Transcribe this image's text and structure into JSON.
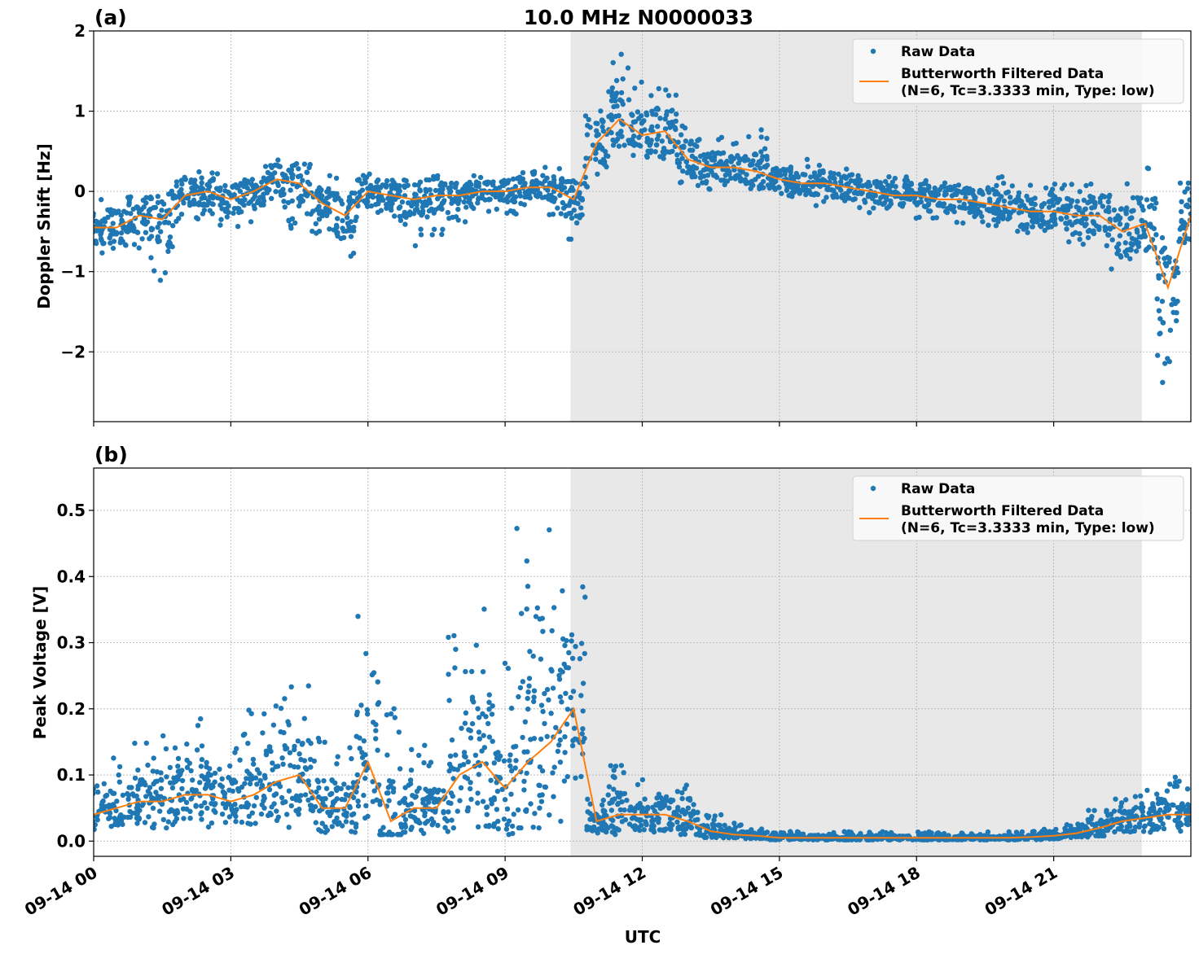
{
  "chart_data": [
    {
      "type": "scatter",
      "panel_label": "(a)",
      "title": "10.0 MHz N0000033",
      "xlabel": "",
      "ylabel": "Doppler Shift [Hz]",
      "xlim_hours_utc": [
        0,
        24
      ],
      "ylim": [
        -2.87,
        2.0
      ],
      "yticks": [
        2,
        1,
        0,
        -1,
        -2
      ],
      "ytick_labels": [
        "2",
        "1",
        "0",
        "−1",
        "−2"
      ],
      "grid": true,
      "legend_position": "top-right",
      "shaded_span_hours_utc": [
        10.43,
        22.93
      ],
      "x_hours_utc": [
        0,
        0.5,
        1,
        1.5,
        2,
        2.5,
        3,
        3.5,
        4,
        4.5,
        5,
        5.5,
        6,
        6.5,
        7,
        7.5,
        8,
        8.5,
        9,
        9.5,
        10,
        10.5,
        11,
        11.5,
        12,
        12.5,
        13,
        13.5,
        14,
        14.5,
        15,
        15.5,
        16,
        16.5,
        17,
        17.5,
        18,
        18.5,
        19,
        19.5,
        20,
        20.5,
        21,
        21.5,
        22,
        22.5,
        23,
        23.5,
        24
      ],
      "series": [
        {
          "name": "Butterworth Filtered Data\n(N=6, Tc=3.3333 min, Type: low)",
          "kind": "line",
          "values": [
            -0.45,
            -0.45,
            -0.3,
            -0.35,
            -0.05,
            0.0,
            -0.1,
            0.0,
            0.15,
            0.1,
            -0.15,
            -0.3,
            0.0,
            -0.05,
            -0.1,
            -0.05,
            -0.05,
            0.0,
            0.0,
            0.05,
            0.05,
            -0.1,
            0.6,
            0.9,
            0.7,
            0.75,
            0.4,
            0.3,
            0.3,
            0.25,
            0.15,
            0.1,
            0.1,
            0.05,
            0.0,
            -0.05,
            -0.05,
            -0.1,
            -0.1,
            -0.15,
            -0.2,
            -0.25,
            -0.25,
            -0.3,
            -0.3,
            -0.5,
            -0.4,
            -1.2,
            -0.3
          ]
        },
        {
          "name": "Raw Data",
          "kind": "points",
          "range_low": [
            -0.85,
            -0.9,
            -0.75,
            -1.2,
            -0.55,
            -0.35,
            -0.5,
            -0.4,
            -0.25,
            -0.5,
            -0.55,
            -0.85,
            -0.3,
            -0.5,
            -0.7,
            -0.6,
            -0.4,
            -0.25,
            -0.3,
            -0.2,
            -0.3,
            -0.6,
            0.0,
            0.4,
            0.3,
            0.35,
            0.0,
            0.0,
            0.0,
            0.0,
            -0.1,
            -0.1,
            -0.2,
            -0.3,
            -0.3,
            -0.3,
            -0.35,
            -0.4,
            -0.4,
            -0.45,
            -0.5,
            -0.55,
            -0.6,
            -0.7,
            -0.75,
            -1.0,
            -0.9,
            -2.5,
            -0.8
          ],
          "range_high": [
            -0.1,
            -0.05,
            0.1,
            0.05,
            0.2,
            0.3,
            0.15,
            0.25,
            0.45,
            0.4,
            0.2,
            0.2,
            0.3,
            0.2,
            0.15,
            0.2,
            0.15,
            0.2,
            0.2,
            0.25,
            0.3,
            0.25,
            1.1,
            1.75,
            1.4,
            1.4,
            0.9,
            0.7,
            0.65,
            0.8,
            0.4,
            0.4,
            0.4,
            0.3,
            0.25,
            0.2,
            0.2,
            0.2,
            0.2,
            0.15,
            0.2,
            0.15,
            0.1,
            0.1,
            0.15,
            0.1,
            0.3,
            -0.3,
            0.7
          ]
        }
      ]
    },
    {
      "type": "scatter",
      "panel_label": "(b)",
      "xlabel": "UTC",
      "ylabel": "Peak Voltage [V]",
      "xlim_hours_utc": [
        0,
        24
      ],
      "ylim": [
        -0.023,
        0.564
      ],
      "yticks": [
        0.0,
        0.1,
        0.2,
        0.3,
        0.4,
        0.5
      ],
      "ytick_labels": [
        "0.0",
        "0.1",
        "0.2",
        "0.3",
        "0.4",
        "0.5"
      ],
      "xticks_hours_utc": [
        0,
        3,
        6,
        9,
        12,
        15,
        18,
        21
      ],
      "xtick_labels": [
        "09-14 00",
        "09-14 03",
        "09-14 06",
        "09-14 09",
        "09-14 12",
        "09-14 15",
        "09-14 18",
        "09-14 21"
      ],
      "grid": true,
      "legend_position": "top-right",
      "shaded_span_hours_utc": [
        10.43,
        22.93
      ],
      "x_hours_utc": [
        0,
        0.5,
        1,
        1.5,
        2,
        2.5,
        3,
        3.5,
        4,
        4.5,
        5,
        5.5,
        6,
        6.5,
        7,
        7.5,
        8,
        8.5,
        9,
        9.5,
        10,
        10.5,
        11,
        11.5,
        12,
        12.5,
        13,
        13.5,
        14,
        14.5,
        15,
        15.5,
        16,
        16.5,
        17,
        17.5,
        18,
        18.5,
        19,
        19.5,
        20,
        20.5,
        21,
        21.5,
        22,
        22.5,
        23,
        23.5,
        24
      ],
      "series": [
        {
          "name": "Butterworth Filtered Data\n(N=6, Tc=3.3333 min, Type: low)",
          "kind": "line",
          "values": [
            0.04,
            0.05,
            0.06,
            0.06,
            0.07,
            0.07,
            0.06,
            0.07,
            0.09,
            0.1,
            0.05,
            0.05,
            0.12,
            0.03,
            0.05,
            0.05,
            0.1,
            0.12,
            0.08,
            0.12,
            0.15,
            0.2,
            0.03,
            0.04,
            0.04,
            0.04,
            0.03,
            0.015,
            0.01,
            0.008,
            0.005,
            0.005,
            0.005,
            0.005,
            0.005,
            0.005,
            0.005,
            0.005,
            0.005,
            0.005,
            0.005,
            0.006,
            0.008,
            0.012,
            0.02,
            0.03,
            0.035,
            0.04,
            0.04
          ]
        },
        {
          "name": "Raw Data",
          "kind": "points",
          "range_low": [
            0.015,
            0.02,
            0.02,
            0.02,
            0.02,
            0.02,
            0.02,
            0.02,
            0.02,
            0.02,
            0.01,
            0.01,
            0.02,
            0.01,
            0.01,
            0.01,
            0.02,
            0.02,
            0.01,
            0.02,
            0.03,
            0.03,
            0.01,
            0.01,
            0.01,
            0.01,
            0.01,
            0.005,
            0.005,
            0.003,
            0.002,
            0.002,
            0.002,
            0.002,
            0.002,
            0.002,
            0.002,
            0.002,
            0.002,
            0.002,
            0.002,
            0.002,
            0.003,
            0.004,
            0.005,
            0.01,
            0.01,
            0.015,
            0.015
          ],
          "range_high": [
            0.1,
            0.13,
            0.15,
            0.19,
            0.17,
            0.2,
            0.14,
            0.2,
            0.22,
            0.24,
            0.17,
            0.15,
            0.34,
            0.24,
            0.15,
            0.12,
            0.32,
            0.39,
            0.27,
            0.49,
            0.5,
            0.45,
            0.07,
            0.13,
            0.1,
            0.11,
            0.09,
            0.04,
            0.03,
            0.02,
            0.015,
            0.015,
            0.015,
            0.015,
            0.015,
            0.015,
            0.015,
            0.015,
            0.015,
            0.015,
            0.015,
            0.015,
            0.02,
            0.03,
            0.05,
            0.07,
            0.09,
            0.1,
            0.08
          ]
        }
      ]
    }
  ],
  "legend": {
    "raw_label": "Raw Data",
    "filtered_label_line1": "Butterworth Filtered Data",
    "filtered_label_line2": "(N=6, Tc=3.3333 min, Type: low)"
  },
  "colors": {
    "raw": "#1f77b4",
    "filtered": "#ff7f0e",
    "shade": "#e8e8e8",
    "grid": "#b0b0b0"
  }
}
